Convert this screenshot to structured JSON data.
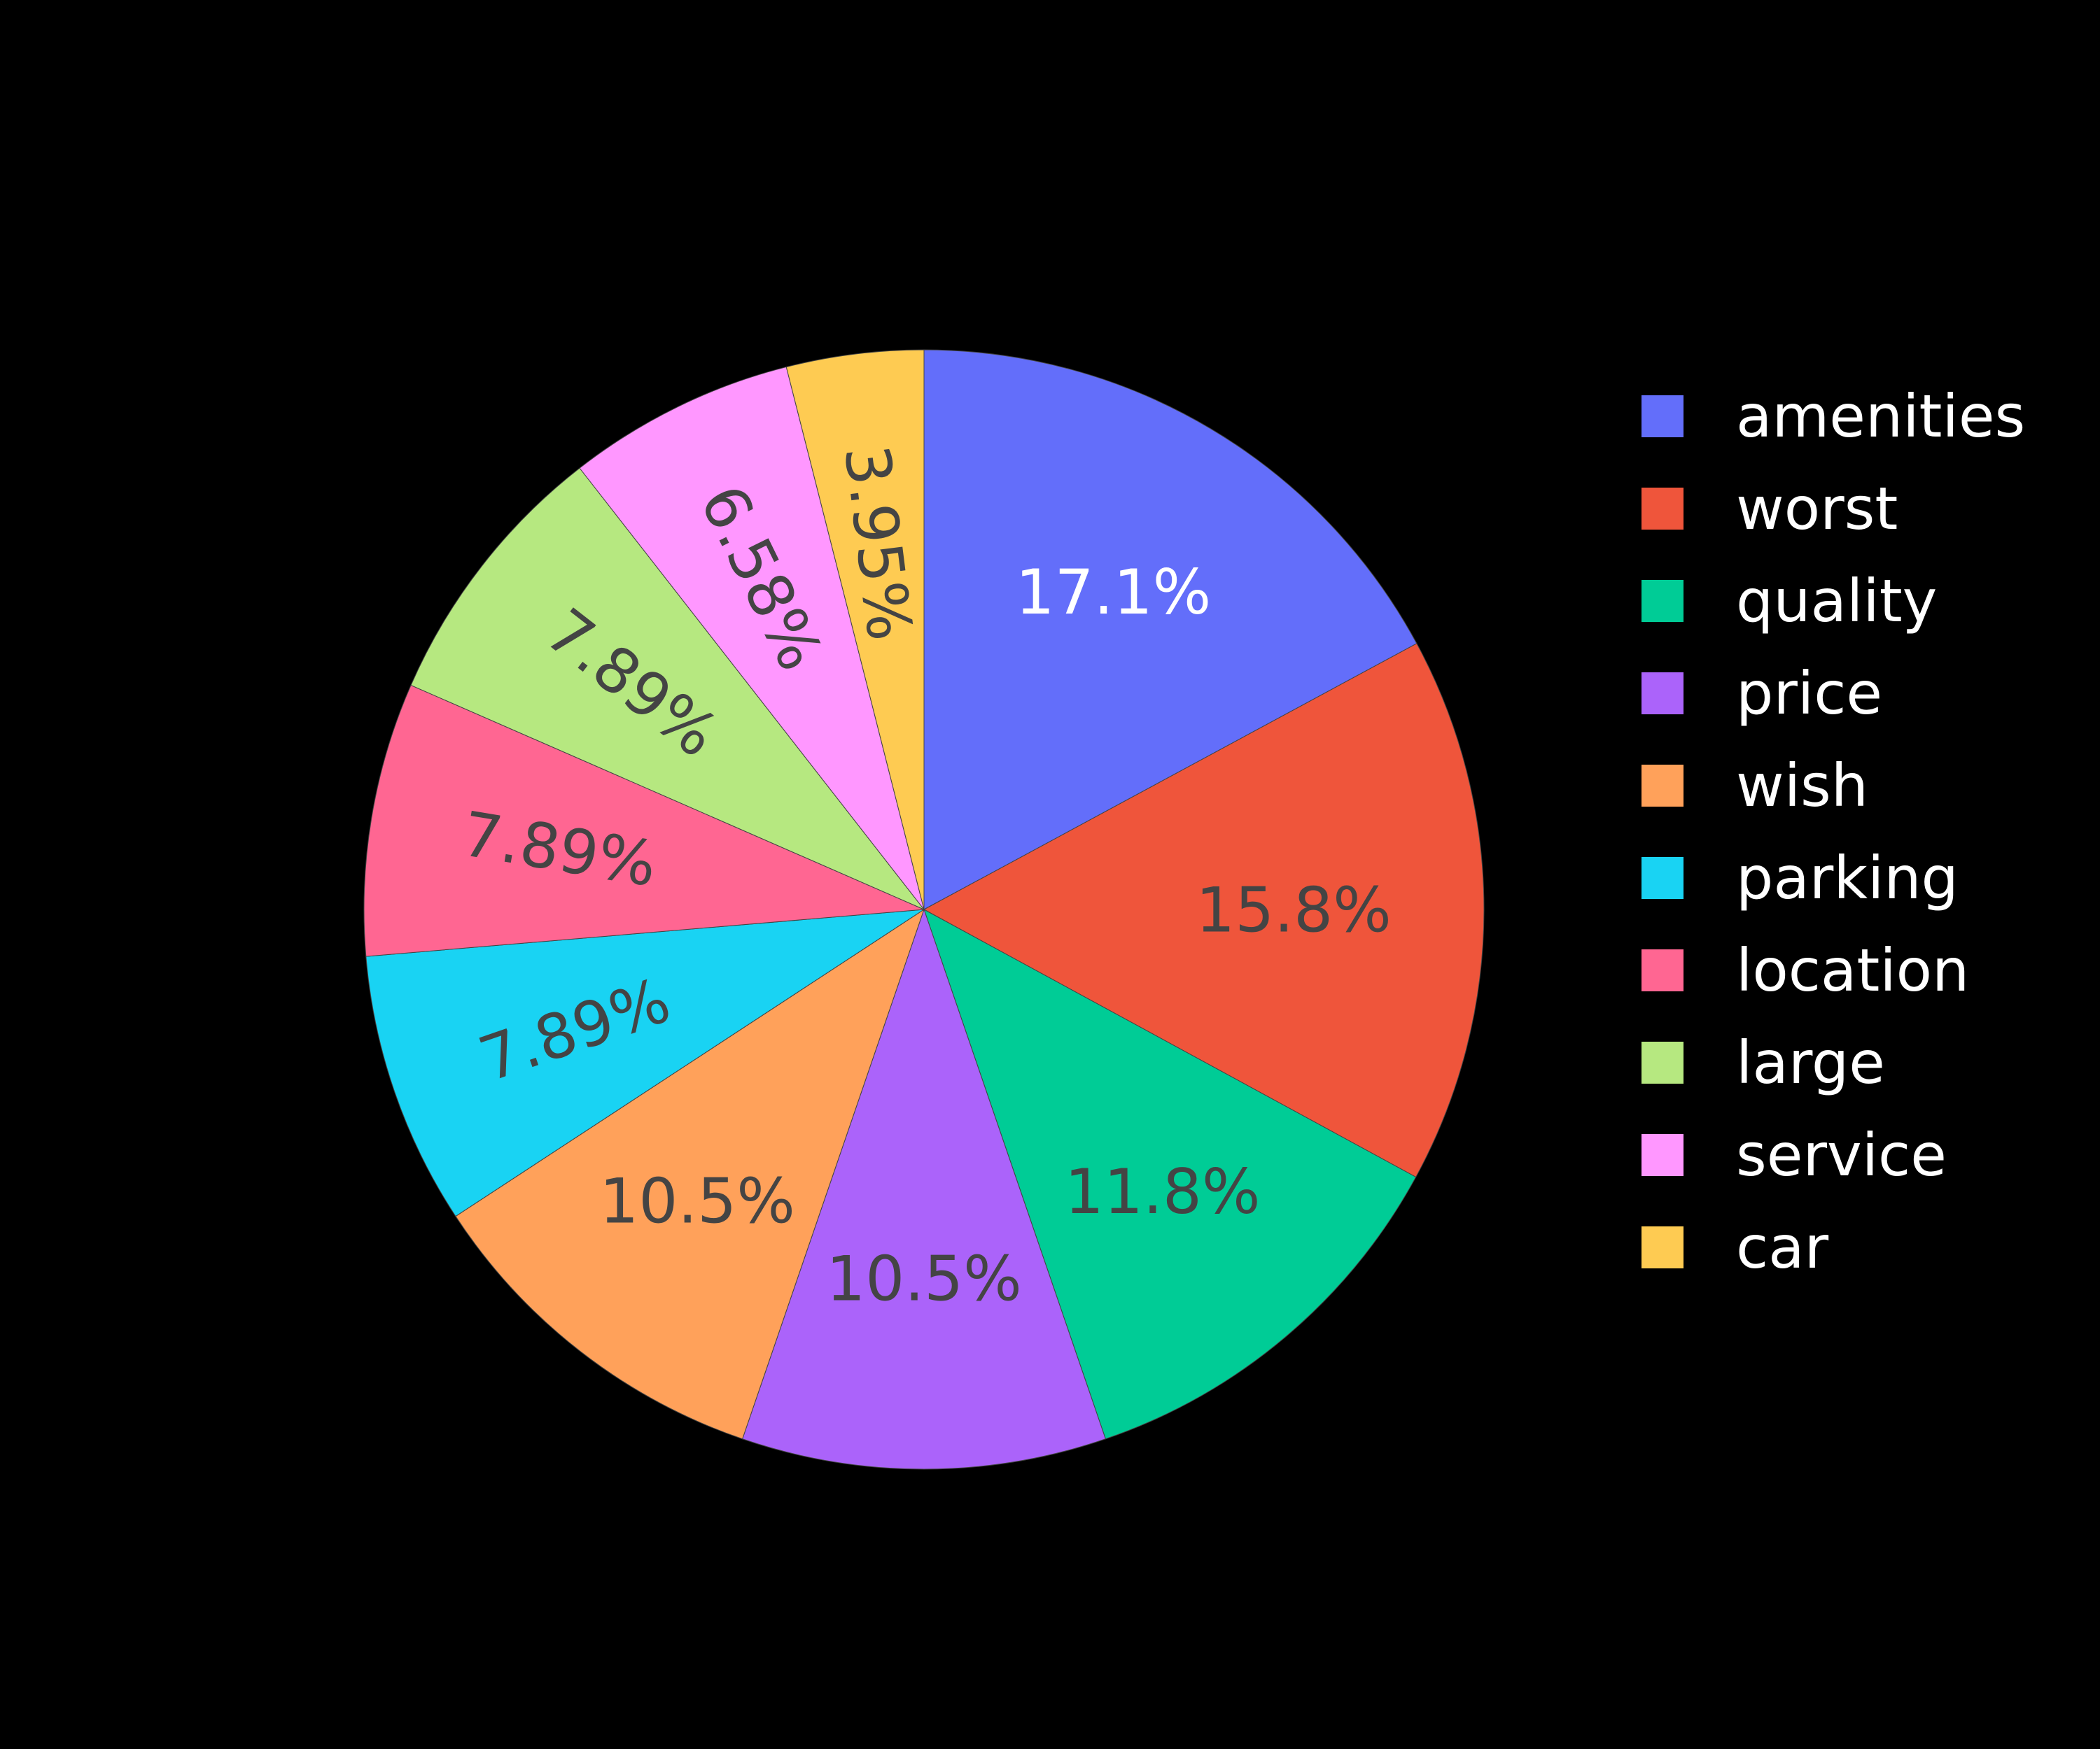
{
  "chart_data": {
    "type": "pie",
    "labels": [
      "amenities",
      "worst",
      "quality",
      "price",
      "wish",
      "parking",
      "location",
      "large",
      "service",
      "car"
    ],
    "values": [
      17.1,
      15.8,
      11.8,
      10.5,
      10.5,
      7.89,
      7.89,
      7.89,
      6.58,
      3.95
    ],
    "text_labels": [
      "17.1%",
      "15.8%",
      "11.8%",
      "10.5%",
      "10.5%",
      "7.89%",
      "7.89%",
      "7.89%",
      "6.58%",
      "3.95%"
    ],
    "colors": [
      "#636efa",
      "#EF553B",
      "#00cc96",
      "#ab63fa",
      "#FFA15A",
      "#19d3f3",
      "#FF6692",
      "#B6E880",
      "#FF97FF",
      "#FECB52"
    ],
    "label_colors": [
      "#ffffff",
      "#444444",
      "#444444",
      "#444444",
      "#444444",
      "#444444",
      "#444444",
      "#444444",
      "#444444",
      "#444444"
    ],
    "direction": "clockwise",
    "start_angle": "top",
    "legend_placement": "right",
    "background": "#000000"
  }
}
